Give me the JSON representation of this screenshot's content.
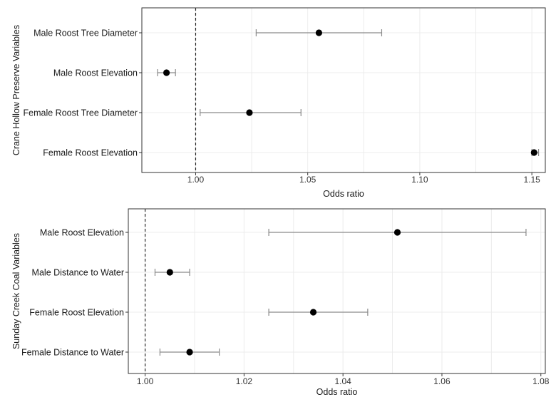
{
  "chart_data": [
    {
      "type": "forest",
      "ylabel": "Crane Hollow Preserve Variables",
      "xlabel": "Odds ratio",
      "xlim": [
        0.976,
        1.156
      ],
      "ticks": [
        1.0,
        1.05,
        1.1,
        1.15
      ],
      "tick_labels": [
        "1.00",
        "1.05",
        "1.10",
        "1.15"
      ],
      "reference_line": 1.0,
      "grid": true,
      "items": [
        {
          "label": "Male Roost Tree Diameter",
          "estimate": 1.055,
          "lower": 1.027,
          "upper": 1.083
        },
        {
          "label": "Male Roost Elevation",
          "estimate": 0.987,
          "lower": 0.983,
          "upper": 0.991
        },
        {
          "label": "Female Roost Tree Diameter",
          "estimate": 1.024,
          "lower": 1.002,
          "upper": 1.047
        },
        {
          "label": "Female Roost Elevation",
          "estimate": 1.151,
          "lower": 1.15,
          "upper": 1.153
        }
      ]
    },
    {
      "type": "forest",
      "ylabel": "Sunday Creek Coal Variables",
      "xlabel": "Odds ratio",
      "xlim": [
        0.9966,
        1.0809
      ],
      "ticks": [
        1.0,
        1.02,
        1.04,
        1.06,
        1.08
      ],
      "tick_labels": [
        "1.00",
        "1.02",
        "1.04",
        "1.06",
        "1.08"
      ],
      "reference_line": 1.0,
      "grid": true,
      "items": [
        {
          "label": "Male Roost Elevation",
          "estimate": 1.051,
          "lower": 1.025,
          "upper": 1.077
        },
        {
          "label": "Male Distance to Water",
          "estimate": 1.005,
          "lower": 1.002,
          "upper": 1.009
        },
        {
          "label": "Female Roost Elevation",
          "estimate": 1.034,
          "lower": 1.025,
          "upper": 1.045
        },
        {
          "label": "Female Distance to Water",
          "estimate": 1.009,
          "lower": 1.003,
          "upper": 1.015
        }
      ]
    }
  ]
}
